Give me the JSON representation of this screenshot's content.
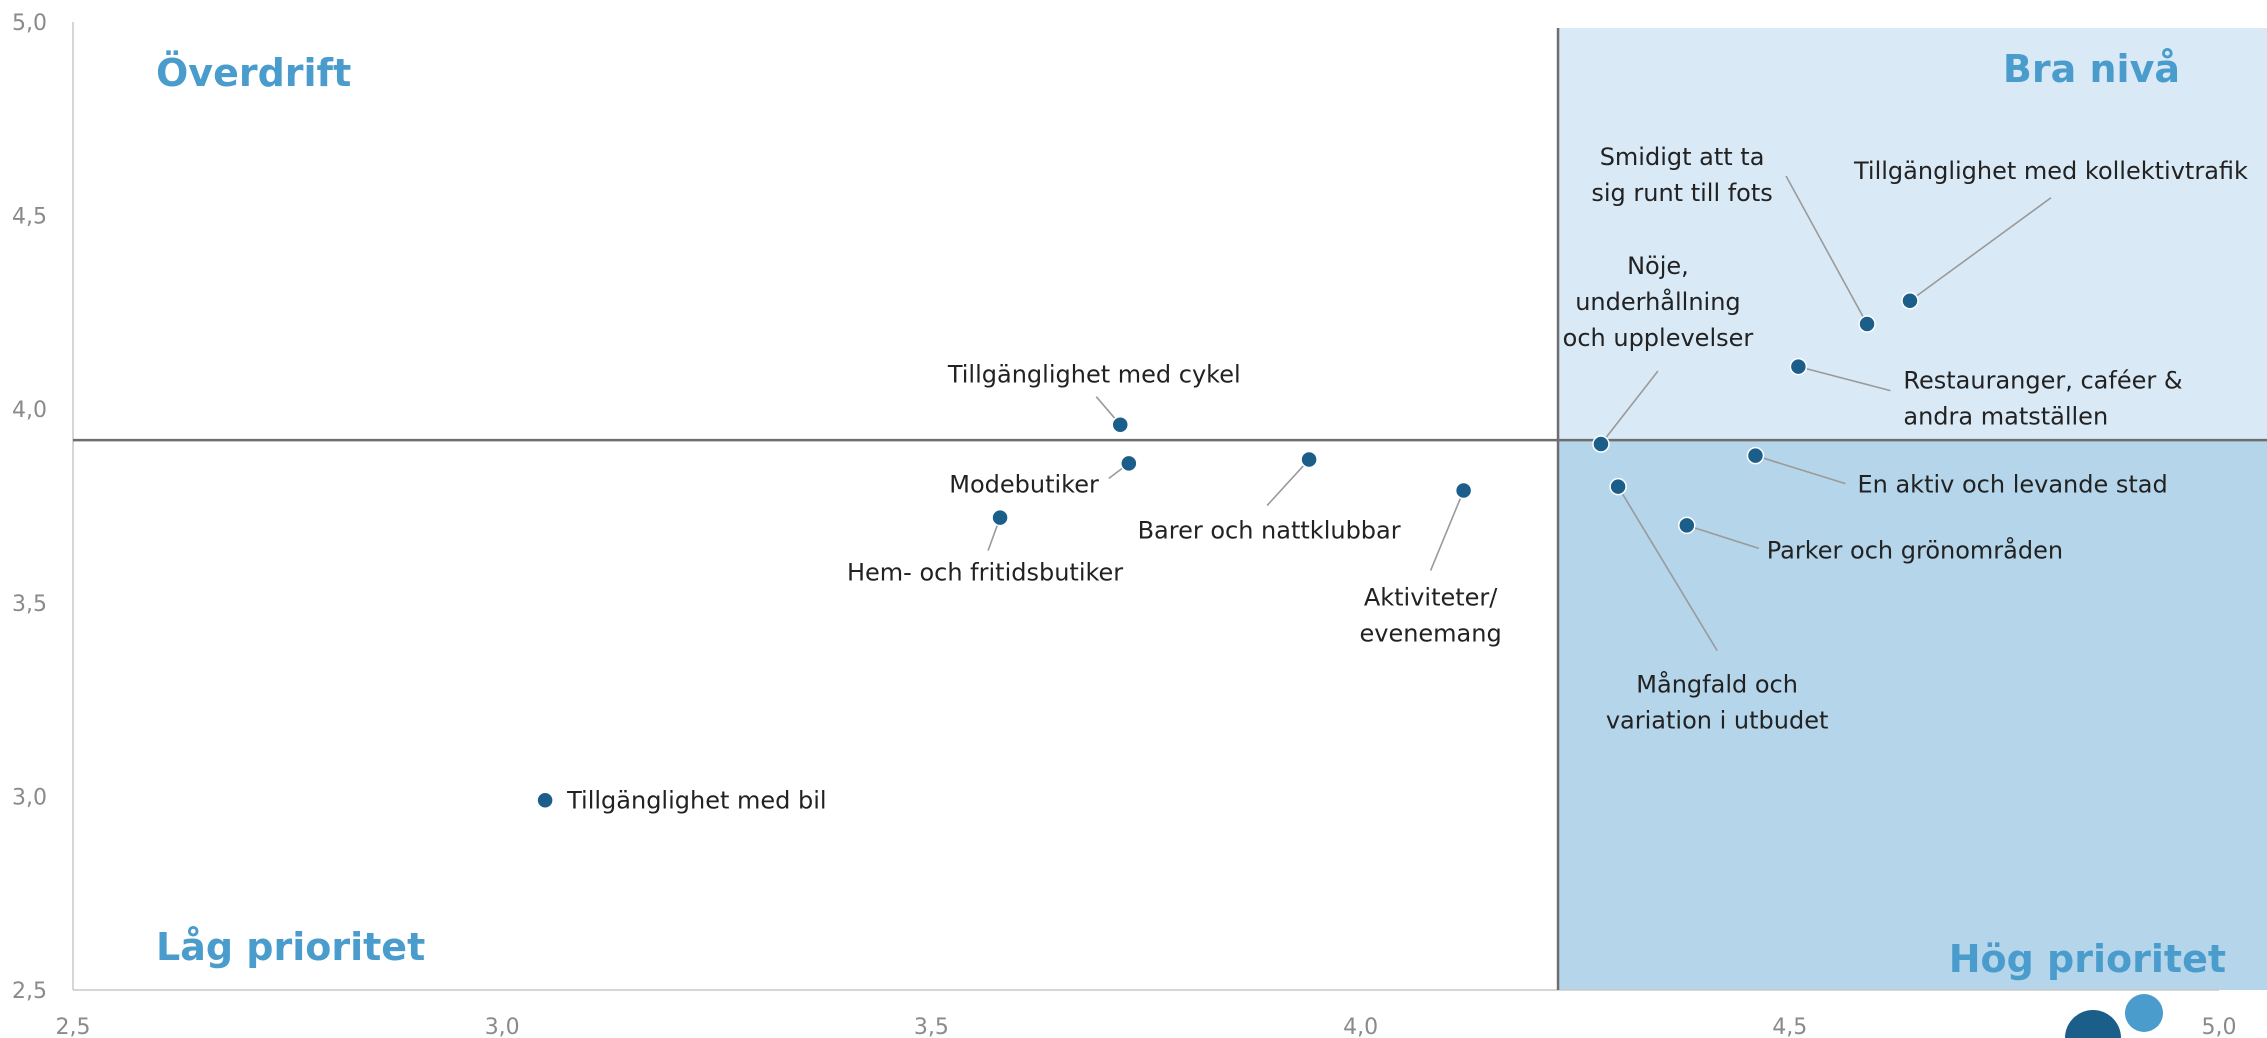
{
  "chart_data": {
    "type": "scatter",
    "xlim": [
      2.5,
      5.0
    ],
    "ylim": [
      2.5,
      5.0
    ],
    "x_ticks": [
      "2,5",
      "3,0",
      "3,5",
      "4,0",
      "4,5",
      "5,0"
    ],
    "y_ticks": [
      "2,5",
      "3,0",
      "3,5",
      "4,0",
      "4,5",
      "5,0"
    ],
    "x_tick_values": [
      2.5,
      3.0,
      3.5,
      4.0,
      4.5,
      5.0
    ],
    "y_tick_values": [
      2.5,
      3.0,
      3.5,
      4.0,
      4.5,
      5.0
    ],
    "divider": {
      "x": 4.23,
      "y": 3.92
    },
    "quadrants": {
      "top_left": "Överdrift",
      "top_right": "Bra nivå",
      "bottom_left": "Låg prioritet",
      "bottom_right": "Hög prioritet"
    },
    "colors": {
      "point": "#1b5e8a",
      "quadrant_top_right": "#d9e9f5",
      "quadrant_bottom_right": "#b4d5ea",
      "quadrant_title": "#4a9ccd",
      "divider": "#6e6e6e"
    },
    "points": [
      {
        "label": "Tillgänglighet med bil",
        "x": 3.05,
        "y": 2.99
      },
      {
        "label": "Tillgänglighet med cykel",
        "x": 3.72,
        "y": 3.96
      },
      {
        "label": "Modebutiker",
        "x": 3.73,
        "y": 3.86
      },
      {
        "label": "Hem- och fritidsbutiker",
        "x": 3.58,
        "y": 3.72
      },
      {
        "label": "Barer och nattklubbar",
        "x": 3.94,
        "y": 3.87
      },
      {
        "label": "Aktiviteter/ evenemang",
        "x": 4.12,
        "y": 3.79
      },
      {
        "label": "Nöje, underhållning och upplevelser",
        "x": 4.28,
        "y": 3.91
      },
      {
        "label": "Mångfald och variation i utbudet",
        "x": 4.3,
        "y": 3.8
      },
      {
        "label": "Parker och grönområden",
        "x": 4.38,
        "y": 3.7
      },
      {
        "label": "En aktiv och levande stad",
        "x": 4.46,
        "y": 3.88
      },
      {
        "label": "Restauranger, caféer & andra matställen",
        "x": 4.51,
        "y": 4.11
      },
      {
        "label": "Smidigt att ta sig runt till fots",
        "x": 4.59,
        "y": 4.22
      },
      {
        "label": "Tillgänglighet med kollektivtrafik",
        "x": 4.64,
        "y": 4.28
      }
    ]
  }
}
